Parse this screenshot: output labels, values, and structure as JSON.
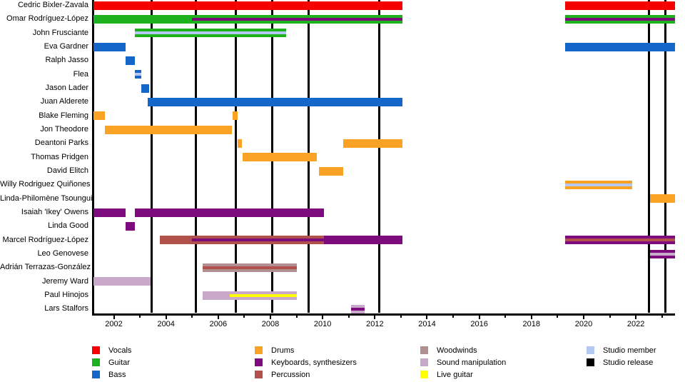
{
  "chart_data": {
    "type": "timeline",
    "x_domain": [
      2001.22,
      2023.5
    ],
    "x_major_ticks": [
      2002,
      2004,
      2006,
      2008,
      2010,
      2012,
      2014,
      2016,
      2018,
      2020,
      2022
    ],
    "x_minor_tick_start": 2002,
    "x_minor_tick_end": 2023,
    "grid": "studio-release-vertical-lines",
    "legend_position": "bottom",
    "colors": {
      "vocals": "#f70000",
      "guitar": "#1db21d",
      "bass": "#1467c8",
      "drums": "#faa223",
      "keyboards": "#7d0b7d",
      "percussion": "#b2504b",
      "woodwinds": "#b09090",
      "sound_manipulation": "#c9a9c9",
      "live_guitar": "#ffff00",
      "studio_member": "#b3c8f2",
      "studio_release": "#000000"
    },
    "release_lines": [
      2003.46,
      2005.14,
      2006.68,
      2008.07,
      2009.46,
      2012.17,
      2022.5,
      2023.13
    ],
    "members": [
      {
        "name": "Cedric Bixler-Zavala",
        "bars": [
          {
            "start": 2001.2,
            "end": 2013.05,
            "color": "vocals"
          },
          {
            "start": 2019.3,
            "end": 2023.5,
            "color": "vocals"
          }
        ]
      },
      {
        "name": "Omar Rodríguez-López",
        "bars": [
          {
            "start": 2001.2,
            "end": 2013.05,
            "color": "guitar",
            "stripes": [
              {
                "start": 2005.0,
                "end": 2013.05,
                "color": "keyboards"
              }
            ]
          },
          {
            "start": 2019.3,
            "end": 2023.5,
            "color": "guitar",
            "stripes": [
              {
                "start": 2019.3,
                "end": 2023.5,
                "color": "keyboards"
              }
            ]
          }
        ]
      },
      {
        "name": "John Frusciante",
        "bars": [
          {
            "start": 2002.8,
            "end": 2008.6,
            "color": "guitar",
            "stripes": [
              {
                "start": 2002.8,
                "end": 2008.6,
                "color": "studio_member"
              }
            ]
          }
        ]
      },
      {
        "name": "Eva Gardner",
        "bars": [
          {
            "start": 2001.2,
            "end": 2002.45,
            "color": "bass"
          },
          {
            "start": 2019.3,
            "end": 2023.5,
            "color": "bass"
          }
        ]
      },
      {
        "name": "Ralph Jasso",
        "bars": [
          {
            "start": 2002.45,
            "end": 2002.8,
            "color": "bass"
          }
        ]
      },
      {
        "name": "Flea",
        "bars": [
          {
            "start": 2002.8,
            "end": 2003.05,
            "color": "bass",
            "stripes": [
              {
                "start": 2002.8,
                "end": 2003.05,
                "color": "studio_member"
              }
            ]
          }
        ]
      },
      {
        "name": "Jason Lader",
        "bars": [
          {
            "start": 2003.05,
            "end": 2003.35,
            "color": "bass"
          }
        ]
      },
      {
        "name": "Juan Alderete",
        "bars": [
          {
            "start": 2003.3,
            "end": 2013.05,
            "color": "bass"
          }
        ]
      },
      {
        "name": "Blake Fleming",
        "bars": [
          {
            "start": 2001.2,
            "end": 2001.65,
            "color": "drums"
          },
          {
            "start": 2006.55,
            "end": 2006.73,
            "color": "drums"
          }
        ]
      },
      {
        "name": "Jon Theodore",
        "bars": [
          {
            "start": 2001.65,
            "end": 2006.52,
            "color": "drums"
          }
        ]
      },
      {
        "name": "Deantoni Parks",
        "bars": [
          {
            "start": 2006.73,
            "end": 2006.92,
            "color": "drums"
          },
          {
            "start": 2010.78,
            "end": 2013.05,
            "color": "drums"
          }
        ]
      },
      {
        "name": "Thomas Pridgen",
        "bars": [
          {
            "start": 2006.92,
            "end": 2009.78,
            "color": "drums"
          }
        ]
      },
      {
        "name": "David Elitch",
        "bars": [
          {
            "start": 2009.85,
            "end": 2010.78,
            "color": "drums"
          }
        ]
      },
      {
        "name": "Willy Rodriguez Quiñones",
        "bars": [
          {
            "start": 2019.3,
            "end": 2021.85,
            "color": "drums",
            "stripes": [
              {
                "start": 2019.3,
                "end": 2021.85,
                "color": "studio_member"
              }
            ]
          }
        ]
      },
      {
        "name": "Linda-Philomène Tsoungui",
        "bars": [
          {
            "start": 2022.55,
            "end": 2023.5,
            "color": "drums"
          }
        ]
      },
      {
        "name": "Isaiah 'Ikey' Owens",
        "bars": [
          {
            "start": 2001.2,
            "end": 2002.45,
            "color": "keyboards"
          },
          {
            "start": 2002.8,
            "end": 2010.05,
            "color": "keyboards"
          }
        ]
      },
      {
        "name": "Linda Good",
        "bars": [
          {
            "start": 2002.45,
            "end": 2002.8,
            "color": "keyboards"
          }
        ]
      },
      {
        "name": "Marcel Rodríguez-López",
        "bars": [
          {
            "start": 2003.75,
            "end": 2010.05,
            "color": "percussion",
            "stripes": [
              {
                "start": 2005.0,
                "end": 2010.05,
                "color": "keyboards"
              }
            ]
          },
          {
            "start": 2010.05,
            "end": 2013.05,
            "color": "keyboards"
          },
          {
            "start": 2019.3,
            "end": 2023.5,
            "color": "keyboards",
            "stripes": [
              {
                "start": 2019.3,
                "end": 2023.5,
                "color": "percussion"
              }
            ]
          }
        ]
      },
      {
        "name": "Leo Genovese",
        "bars": [
          {
            "start": 2022.55,
            "end": 2023.5,
            "color": "keyboards",
            "stripes": [
              {
                "start": 2022.55,
                "end": 2023.5,
                "color": "sound_manipulation"
              }
            ]
          }
        ]
      },
      {
        "name": "Adrián Terrazas-González",
        "bars": [
          {
            "start": 2005.4,
            "end": 2009.0,
            "color": "woodwinds",
            "stripes": [
              {
                "start": 2005.4,
                "end": 2009.0,
                "color": "percussion"
              }
            ]
          }
        ]
      },
      {
        "name": "Jeremy Ward",
        "bars": [
          {
            "start": 2001.2,
            "end": 2003.4,
            "color": "sound_manipulation"
          }
        ]
      },
      {
        "name": "Paul Hinojos",
        "bars": [
          {
            "start": 2005.4,
            "end": 2009.0,
            "color": "sound_manipulation",
            "stripes": [
              {
                "start": 2006.45,
                "end": 2009.0,
                "color": "live_guitar"
              }
            ]
          }
        ]
      },
      {
        "name": "Lars Stalfors",
        "bars": [
          {
            "start": 2011.08,
            "end": 2011.6,
            "color": "sound_manipulation",
            "stripes": [
              {
                "start": 2011.08,
                "end": 2011.6,
                "color": "keyboards"
              }
            ]
          }
        ]
      }
    ],
    "legend_columns": [
      [
        {
          "label": "Vocals",
          "color": "vocals"
        },
        {
          "label": "Guitar",
          "color": "guitar"
        },
        {
          "label": "Bass",
          "color": "bass"
        }
      ],
      [
        {
          "label": "Drums",
          "color": "drums"
        },
        {
          "label": "Keyboards, synthesizers",
          "color": "keyboards"
        },
        {
          "label": "Percussion",
          "color": "percussion"
        }
      ],
      [
        {
          "label": "Woodwinds",
          "color": "woodwinds"
        },
        {
          "label": "Sound manipulation",
          "color": "sound_manipulation"
        },
        {
          "label": "Live guitar",
          "color": "live_guitar"
        }
      ],
      [
        {
          "label": "Studio member",
          "color": "studio_member"
        },
        {
          "label": "Studio release",
          "color": "studio_release"
        }
      ]
    ]
  }
}
